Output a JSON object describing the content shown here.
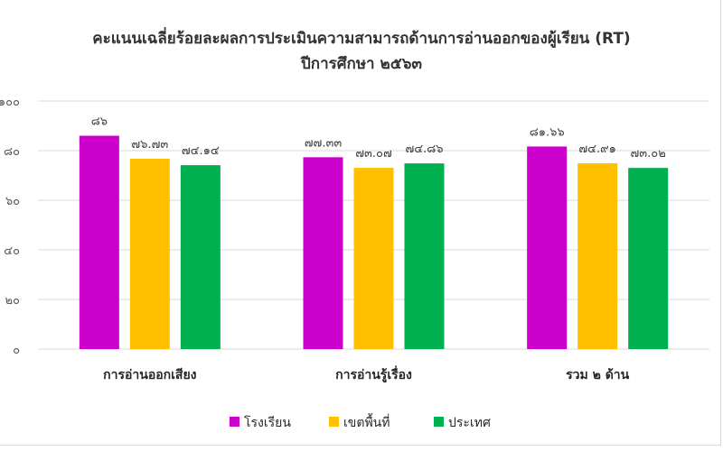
{
  "chart_data": {
    "type": "bar",
    "title": "คะแนนเฉลี่ยร้อยละผลการประเมินความสามารถด้านการอ่านออกของผู้เรียน (RT)",
    "subtitle": "ปีการศึกษา ๒๕๖๓",
    "categories": [
      "การอ่านออกเสียง",
      "การอ่านรู้เรื่อง",
      "รวม ๒ ด้าน"
    ],
    "series": [
      {
        "name": "โรงเรียน",
        "color": "#cc00cc",
        "values": [
          86,
          77.33,
          81.66
        ],
        "labels": [
          "๘๖",
          "๗๗.๓๓",
          "๘๑.๖๖"
        ]
      },
      {
        "name": "เขตพื้นที่",
        "color": "#ffc000",
        "values": [
          76.73,
          73.07,
          74.91
        ],
        "labels": [
          "๗๖.๗๓",
          "๗๓.๐๗",
          "๗๔.๙๑"
        ]
      },
      {
        "name": "ประเทศ",
        "color": "#00b050",
        "values": [
          74.14,
          74.86,
          73.02
        ],
        "labels": [
          "๗๔.๑๔",
          "๗๔.๘๖",
          "๗๓.๐๒"
        ]
      }
    ],
    "yticks": [
      0,
      20,
      40,
      60,
      80,
      100
    ],
    "ytick_labels": [
      "๐",
      "๒๐",
      "๔๐",
      "๖๐",
      "๘๐",
      "๑๐๐"
    ],
    "ylim": [
      0,
      100
    ],
    "grid": true,
    "legend_position": "bottom",
    "gridline_color": "#d9d9d9"
  }
}
